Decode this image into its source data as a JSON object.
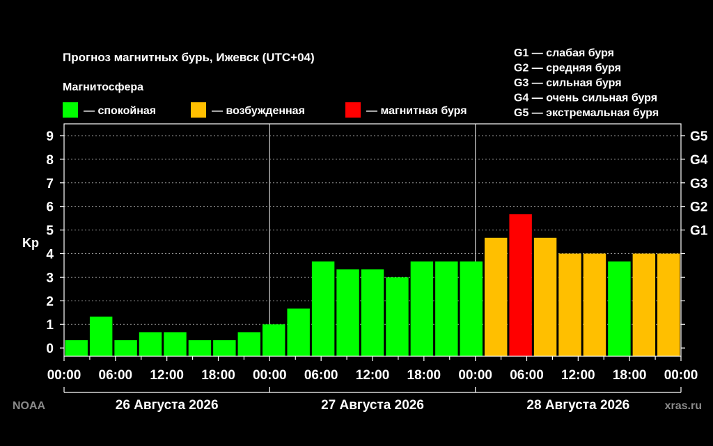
{
  "chart_data": {
    "type": "bar",
    "title": "Прогноз магнитных бурь, Ижевск (UTC+04)",
    "ylabel": "Kp",
    "ylim": [
      0,
      9
    ],
    "legend_title": "Магнитосфера",
    "legend": [
      {
        "name": "— спокойная",
        "color": "#00ff00"
      },
      {
        "name": "— возбужденная",
        "color": "#ffbf00"
      },
      {
        "name": "— магнитная буря",
        "color": "#ff0000"
      }
    ],
    "storm_scale": [
      "G1 — слабая буря",
      "G2 — средняя буря",
      "G3 — сильная буря",
      "G4 — очень сильная буря",
      "G5 — экстремальная буря"
    ],
    "y_ticks": [
      "0",
      "1",
      "2",
      "3",
      "4",
      "5",
      "6",
      "7",
      "8",
      "9"
    ],
    "right_ticks": [
      {
        "kp": 5,
        "label": "G1"
      },
      {
        "kp": 6,
        "label": "G2"
      },
      {
        "kp": 7,
        "label": "G3"
      },
      {
        "kp": 8,
        "label": "G4"
      },
      {
        "kp": 9,
        "label": "G5"
      }
    ],
    "x_ticks": [
      "00:00",
      "06:00",
      "12:00",
      "18:00",
      "00:00",
      "06:00",
      "12:00",
      "18:00",
      "00:00",
      "06:00",
      "12:00",
      "18:00",
      "00:00"
    ],
    "days": [
      "26 Августа 2026",
      "27 Августа 2026",
      "28 Августа 2026"
    ],
    "values": [
      0.33,
      1.33,
      0.33,
      0.67,
      0.67,
      0.33,
      0.33,
      0.67,
      1.0,
      1.67,
      3.67,
      3.33,
      3.33,
      3.0,
      3.67,
      3.67,
      3.67,
      4.67,
      5.67,
      4.67,
      4.0,
      4.0,
      3.67,
      4.0,
      4.0
    ],
    "colors": [
      "#00ff00",
      "#00ff00",
      "#00ff00",
      "#00ff00",
      "#00ff00",
      "#00ff00",
      "#00ff00",
      "#00ff00",
      "#00ff00",
      "#00ff00",
      "#00ff00",
      "#00ff00",
      "#00ff00",
      "#00ff00",
      "#00ff00",
      "#00ff00",
      "#00ff00",
      "#ffbf00",
      "#ff0000",
      "#ffbf00",
      "#ffbf00",
      "#ffbf00",
      "#00ff00",
      "#ffbf00",
      "#ffbf00"
    ],
    "grid": true
  },
  "source_left": "NOAA",
  "source_right": "xras.ru"
}
